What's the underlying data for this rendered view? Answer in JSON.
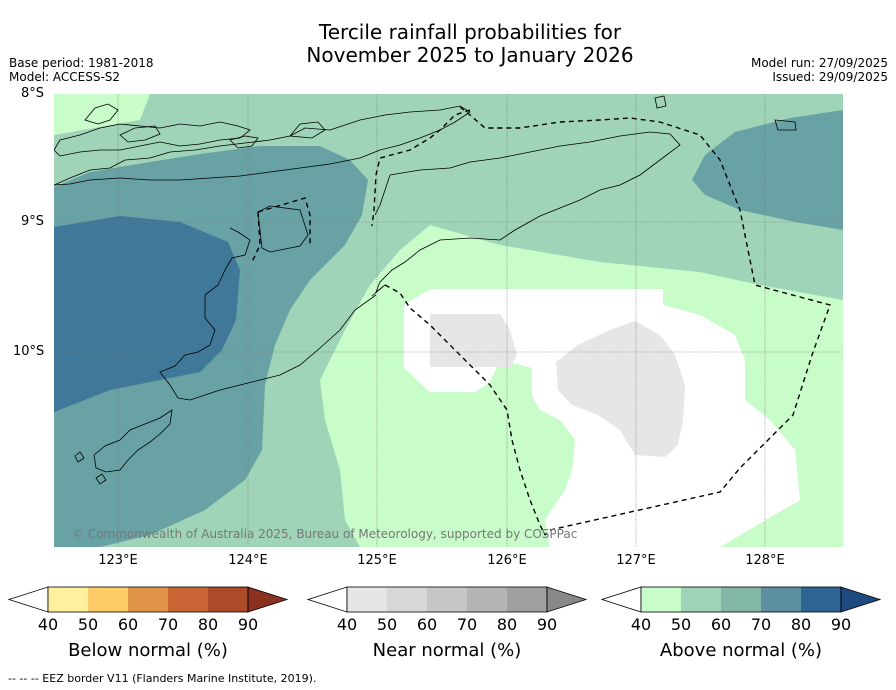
{
  "title_line1": "Tercile rainfall probabilities for",
  "title_line2": "November 2025 to January 2026",
  "base_period": "Base period: 1981-2018",
  "model": "Model: ACCESS-S2",
  "model_run": "Model run: 27/09/2025",
  "issued": "Issued: 29/09/2025",
  "lat_labels": [
    "8°S",
    "9°S",
    "10°S"
  ],
  "lon_labels": [
    "123°E",
    "124°E",
    "125°E",
    "126°E",
    "127°E",
    "128°E"
  ],
  "copyright": "© Commonwealth of Australia 2025, Bureau of Meteorology, supported by COSPPac",
  "colorbars": [
    {
      "title": "Below normal (%)",
      "ticks": [
        "40",
        "50",
        "60",
        "70",
        "80",
        "90"
      ],
      "colors": [
        "#ffffff",
        "#fff0a0",
        "#fdcb66",
        "#e09448",
        "#c96534",
        "#ad4a28",
        "#8c3020"
      ]
    },
    {
      "title": "Near normal (%)",
      "ticks": [
        "40",
        "50",
        "60",
        "70",
        "80",
        "90"
      ],
      "colors": [
        "#ffffff",
        "#e6e6e6",
        "#d8d8d8",
        "#c6c6c6",
        "#b4b4b4",
        "#a0a0a0",
        "#888888"
      ]
    },
    {
      "title": "Above normal (%)",
      "ticks": [
        "40",
        "50",
        "60",
        "70",
        "80",
        "90"
      ],
      "colors": [
        "#ffffff",
        "#c8fcc8",
        "#9fd4b8",
        "#83b8a8",
        "#5a90a0",
        "#2e6494",
        "#1d4a80"
      ]
    }
  ],
  "footnote": "--  --  -- EEZ border V11 (Flanders Marine Institute, 2019)."
}
